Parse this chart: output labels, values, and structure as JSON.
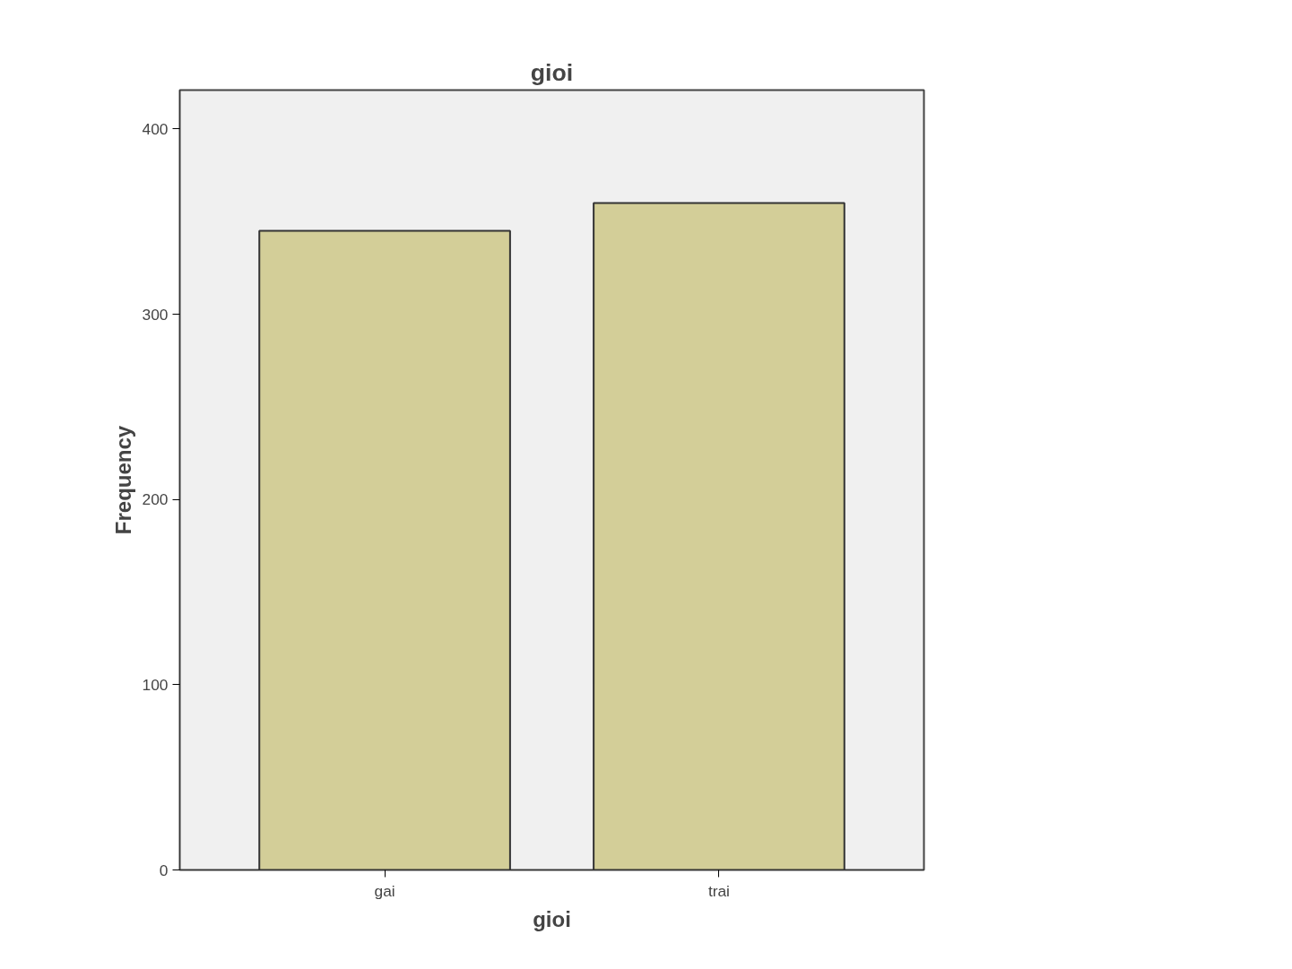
{
  "chart_data": {
    "type": "bar",
    "title": "gioi",
    "xlabel": "gioi",
    "ylabel": "Frequency",
    "categories": [
      "gai",
      "trai"
    ],
    "values": [
      345,
      360
    ],
    "color": "#d3ce98",
    "ylim": [
      0,
      421
    ],
    "yticks": [
      0,
      100,
      200,
      300,
      400
    ],
    "grid": false
  }
}
